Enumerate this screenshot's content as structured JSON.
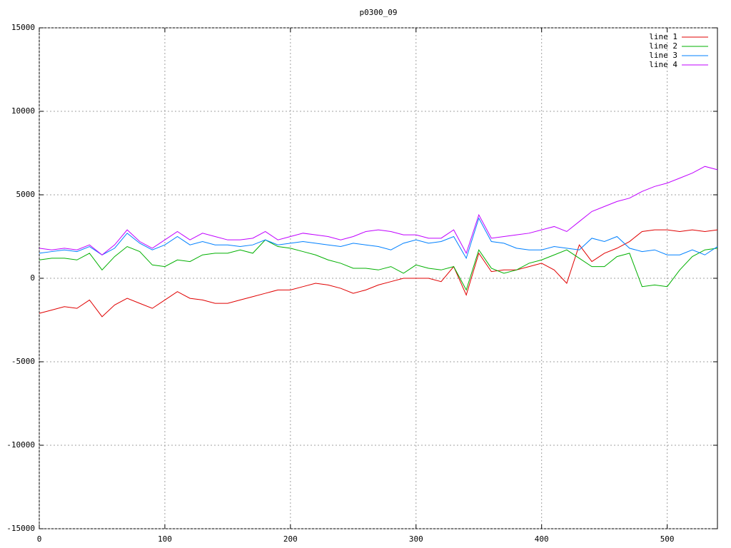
{
  "chart_data": {
    "type": "line",
    "title": "p0300_09",
    "x": [
      0,
      10,
      20,
      30,
      40,
      50,
      60,
      70,
      80,
      90,
      100,
      110,
      120,
      130,
      140,
      150,
      160,
      170,
      180,
      190,
      200,
      210,
      220,
      230,
      240,
      250,
      260,
      270,
      280,
      290,
      300,
      310,
      320,
      330,
      340,
      350,
      360,
      370,
      380,
      390,
      400,
      410,
      420,
      430,
      440,
      450,
      460,
      470,
      480,
      490,
      500,
      510,
      520,
      530,
      540
    ],
    "series": [
      {
        "name": "line 1",
        "color": "#e00000",
        "values": [
          -2100,
          -1900,
          -1700,
          -1800,
          -1300,
          -2300,
          -1600,
          -1200,
          -1500,
          -1800,
          -1300,
          -800,
          -1200,
          -1300,
          -1500,
          -1500,
          -1300,
          -1100,
          -900,
          -700,
          -700,
          -500,
          -300,
          -400,
          -600,
          -900,
          -700,
          -400,
          -200,
          0,
          0,
          0,
          -200,
          700,
          -1000,
          1500,
          400,
          500,
          500,
          700,
          900,
          500,
          -300,
          2000,
          1000,
          1500,
          1800,
          2200,
          2800,
          2900,
          2900,
          2800,
          2900,
          2800,
          2900
        ]
      },
      {
        "name": "line 2",
        "color": "#00b000",
        "values": [
          1100,
          1200,
          1200,
          1100,
          1500,
          500,
          1300,
          1900,
          1600,
          800,
          700,
          1100,
          1000,
          1400,
          1500,
          1500,
          1700,
          1500,
          2300,
          1900,
          1800,
          1600,
          1400,
          1100,
          900,
          600,
          600,
          500,
          700,
          300,
          800,
          600,
          500,
          700,
          -700,
          1700,
          600,
          300,
          500,
          900,
          1100,
          1400,
          1700,
          1200,
          700,
          700,
          1300,
          1500,
          -500,
          -400,
          -500,
          500,
          1300,
          1700,
          1800
        ]
      },
      {
        "name": "line 3",
        "color": "#0080ff",
        "values": [
          1500,
          1600,
          1700,
          1600,
          1900,
          1400,
          1800,
          2700,
          2100,
          1700,
          2000,
          2500,
          2000,
          2200,
          2000,
          2000,
          1900,
          2000,
          2300,
          2000,
          2100,
          2200,
          2100,
          2000,
          1900,
          2100,
          2000,
          1900,
          1700,
          2100,
          2300,
          2100,
          2200,
          2500,
          1200,
          3600,
          2200,
          2100,
          1800,
          1700,
          1700,
          1900,
          1800,
          1700,
          2400,
          2200,
          2500,
          1800,
          1600,
          1700,
          1400,
          1400,
          1700,
          1400,
          1900
        ]
      },
      {
        "name": "line 4",
        "color": "#c000ff",
        "values": [
          1800,
          1700,
          1800,
          1700,
          2000,
          1400,
          2000,
          2900,
          2200,
          1800,
          2300,
          2800,
          2300,
          2700,
          2500,
          2300,
          2300,
          2400,
          2800,
          2300,
          2500,
          2700,
          2600,
          2500,
          2300,
          2500,
          2800,
          2900,
          2800,
          2600,
          2600,
          2400,
          2400,
          2900,
          1500,
          3800,
          2400,
          2500,
          2600,
          2700,
          2900,
          3100,
          2800,
          3400,
          4000,
          4300,
          4600,
          4800,
          5200,
          5500,
          5700,
          6000,
          6300,
          6700,
          6500
        ]
      }
    ],
    "xlim": [
      0,
      540
    ],
    "xticks": [
      0,
      100,
      200,
      300,
      400,
      500
    ],
    "ylim": [
      -15000,
      15000
    ],
    "yticks": [
      -15000,
      -10000,
      -5000,
      0,
      5000,
      10000,
      15000
    ],
    "grid": true,
    "legend": "top-right"
  }
}
